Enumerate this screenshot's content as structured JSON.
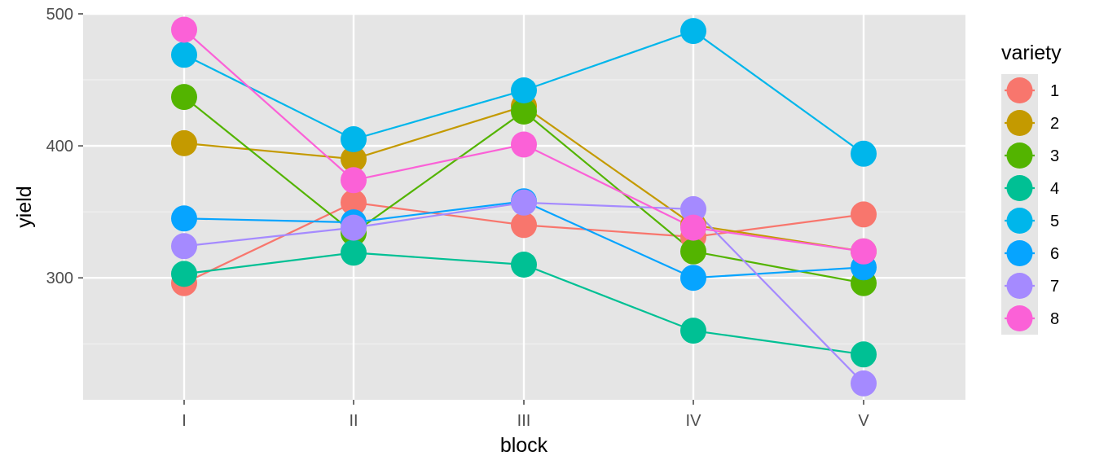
{
  "chart_data": {
    "type": "line",
    "xlabel": "block",
    "ylabel": "yield",
    "categories": [
      "I",
      "II",
      "III",
      "IV",
      "V"
    ],
    "ylim": [
      207,
      500
    ],
    "yticks": [
      300,
      400,
      500
    ],
    "grid": true,
    "legend": {
      "title": "variety",
      "placement": "right"
    },
    "series": [
      {
        "name": "1",
        "color": "#F8766D",
        "values": [
          296,
          357,
          340,
          331,
          348
        ]
      },
      {
        "name": "2",
        "color": "#C49A00",
        "values": [
          402,
          390,
          430,
          340,
          320
        ]
      },
      {
        "name": "3",
        "color": "#53B400",
        "values": [
          437,
          334,
          426,
          320,
          296
        ]
      },
      {
        "name": "4",
        "color": "#00C094",
        "values": [
          303,
          319,
          310,
          260,
          242
        ]
      },
      {
        "name": "5",
        "color": "#00B6EB",
        "values": [
          469,
          405,
          442,
          487,
          394
        ]
      },
      {
        "name": "6",
        "color": "#06A4FF",
        "values": [
          345,
          342,
          358,
          300,
          308
        ]
      },
      {
        "name": "7",
        "color": "#A58AFF",
        "values": [
          324,
          338,
          357,
          352,
          220
        ]
      },
      {
        "name": "8",
        "color": "#FB61D7",
        "values": [
          488,
          374,
          401,
          338,
          320
        ]
      }
    ]
  }
}
